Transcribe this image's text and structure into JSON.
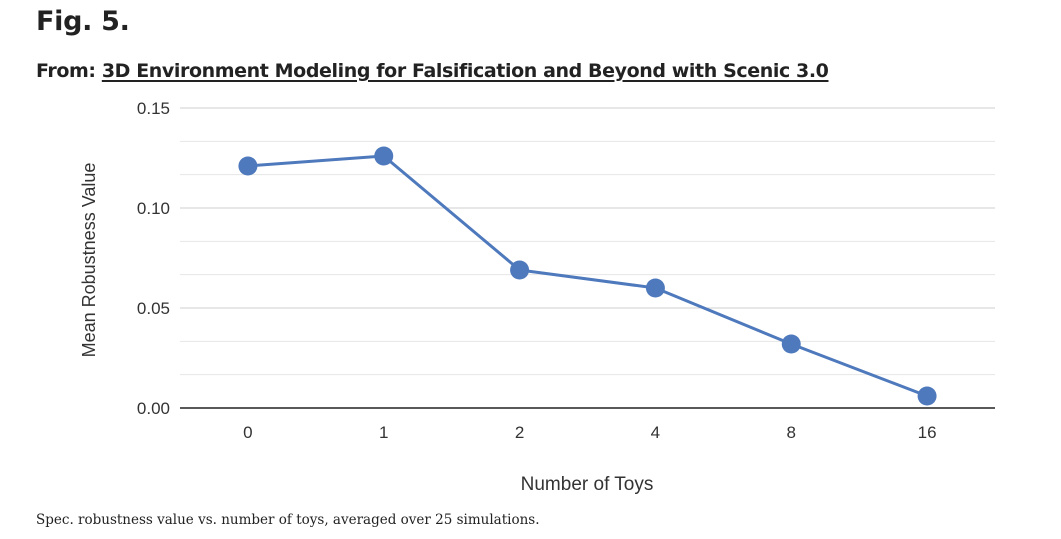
{
  "figure": {
    "label": "Fig. 5.",
    "from_prefix": "From:",
    "source_title": "3D Environment Modeling for Falsification and Beyond with Scenic 3.0",
    "caption": "Spec. robustness value vs. number of toys, averaged over 25 simulations."
  },
  "colors": {
    "series": "#4e79bc",
    "gridline": "#d9d9d9",
    "axis": "#222222",
    "text": "#222222"
  },
  "chart_data": {
    "type": "line",
    "title": "",
    "xlabel": "Number of Toys",
    "ylabel": "Mean Robustness Value",
    "categories": [
      "0",
      "1",
      "2",
      "4",
      "8",
      "16"
    ],
    "series": [
      {
        "values": [
          0.121,
          0.126,
          0.069,
          0.06,
          0.032,
          0.006
        ]
      }
    ],
    "ylim": [
      0,
      0.15
    ],
    "yticks": [
      "0.00",
      "0.05",
      "0.10",
      "0.15"
    ],
    "minor_gridlines": true,
    "grid": true,
    "legend": "none"
  }
}
